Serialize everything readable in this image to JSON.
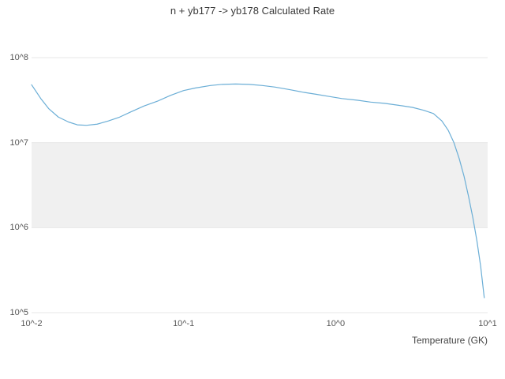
{
  "chart": {
    "title": "n + yb177 -> yb178 Calculated Rate",
    "xlabel": "Temperature (GK)"
  },
  "chart_data": {
    "type": "line",
    "title": "n + yb177 -> yb178 Calculated Rate",
    "xlabel": "Temperature (GK)",
    "ylabel": "",
    "x_scale": "log",
    "y_scale": "log",
    "xlim": [
      0.01,
      10
    ],
    "ylim": [
      100000,
      100000000
    ],
    "x_ticks": [
      {
        "label": "10^-2",
        "value": 0.01
      },
      {
        "label": "10^-1",
        "value": 0.1
      },
      {
        "label": "10^0",
        "value": 1
      },
      {
        "label": "10^1",
        "value": 10
      }
    ],
    "y_ticks": [
      {
        "label": "10^5",
        "value": 100000
      },
      {
        "label": "10^6",
        "value": 1000000
      },
      {
        "label": "10^7",
        "value": 10000000
      },
      {
        "label": "10^8",
        "value": 100000000
      }
    ],
    "band": {
      "from": 1000000,
      "to": 10000000,
      "color": "#f0f0f0"
    },
    "grid_color": "#e7e7e7",
    "line_color": "#6baed6",
    "series_name": "calculated rate",
    "x": [
      0.01,
      0.0115,
      0.013,
      0.015,
      0.0175,
      0.02,
      0.023,
      0.027,
      0.032,
      0.038,
      0.045,
      0.055,
      0.068,
      0.082,
      0.1,
      0.12,
      0.15,
      0.18,
      0.22,
      0.27,
      0.33,
      0.4,
      0.5,
      0.62,
      0.75,
      0.9,
      1.1,
      1.4,
      1.7,
      2.1,
      2.6,
      3.2,
      3.8,
      4.4,
      5.0,
      5.5,
      6.0,
      6.5,
      7.0,
      7.5,
      8.0,
      8.5,
      9.0,
      9.5
    ],
    "y": [
      48000000,
      33000000,
      25000000,
      20000000,
      17500000,
      16200000,
      16000000,
      16500000,
      18000000,
      20000000,
      23000000,
      27000000,
      31000000,
      36000000,
      41000000,
      44000000,
      47000000,
      48500000,
      49000000,
      48500000,
      47000000,
      45000000,
      42000000,
      39000000,
      37000000,
      35000000,
      33000000,
      31500000,
      30000000,
      29000000,
      27500000,
      26000000,
      24000000,
      22000000,
      18000000,
      14000000,
      10000000,
      6500000,
      4000000,
      2300000,
      1300000,
      700000,
      350000,
      150000
    ]
  }
}
